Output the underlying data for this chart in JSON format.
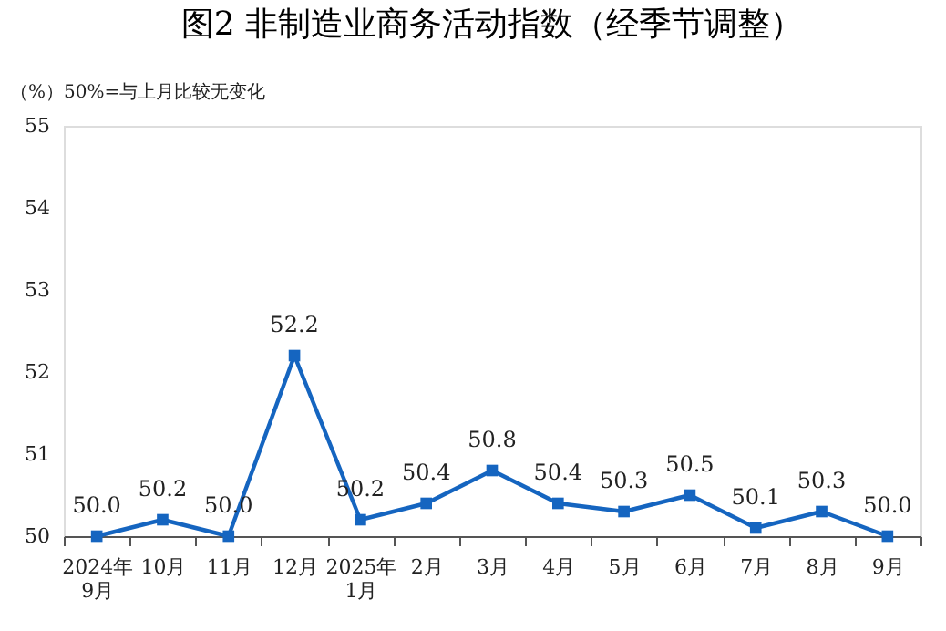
{
  "chart_data": {
    "type": "line",
    "title": "图2 非制造业商务活动指数（经季节调整）",
    "ylabel": "（%）50%=与上月比较无变化",
    "categories": [
      "2024年\n9月",
      "10月",
      "11月",
      "12月",
      "2025年\n1月",
      "2月",
      "3月",
      "4月",
      "5月",
      "6月",
      "7月",
      "8月",
      "9月"
    ],
    "series": [
      {
        "color": "#1565c0",
        "values": [
          50.0,
          50.2,
          50.0,
          52.2,
          50.2,
          50.4,
          50.8,
          50.4,
          50.3,
          50.5,
          50.1,
          50.3,
          50.0
        ],
        "value_labels": [
          "50.0",
          "50.2",
          "50.0",
          "52.2",
          "50.2",
          "50.4",
          "50.8",
          "50.4",
          "50.3",
          "50.5",
          "50.1",
          "50.3",
          "50.0"
        ]
      }
    ],
    "ylim": [
      50,
      55
    ],
    "yticks": [
      50,
      51,
      52,
      53,
      54,
      55
    ],
    "grid": false,
    "legend": false,
    "marker": "square",
    "line_style": "solid"
  }
}
